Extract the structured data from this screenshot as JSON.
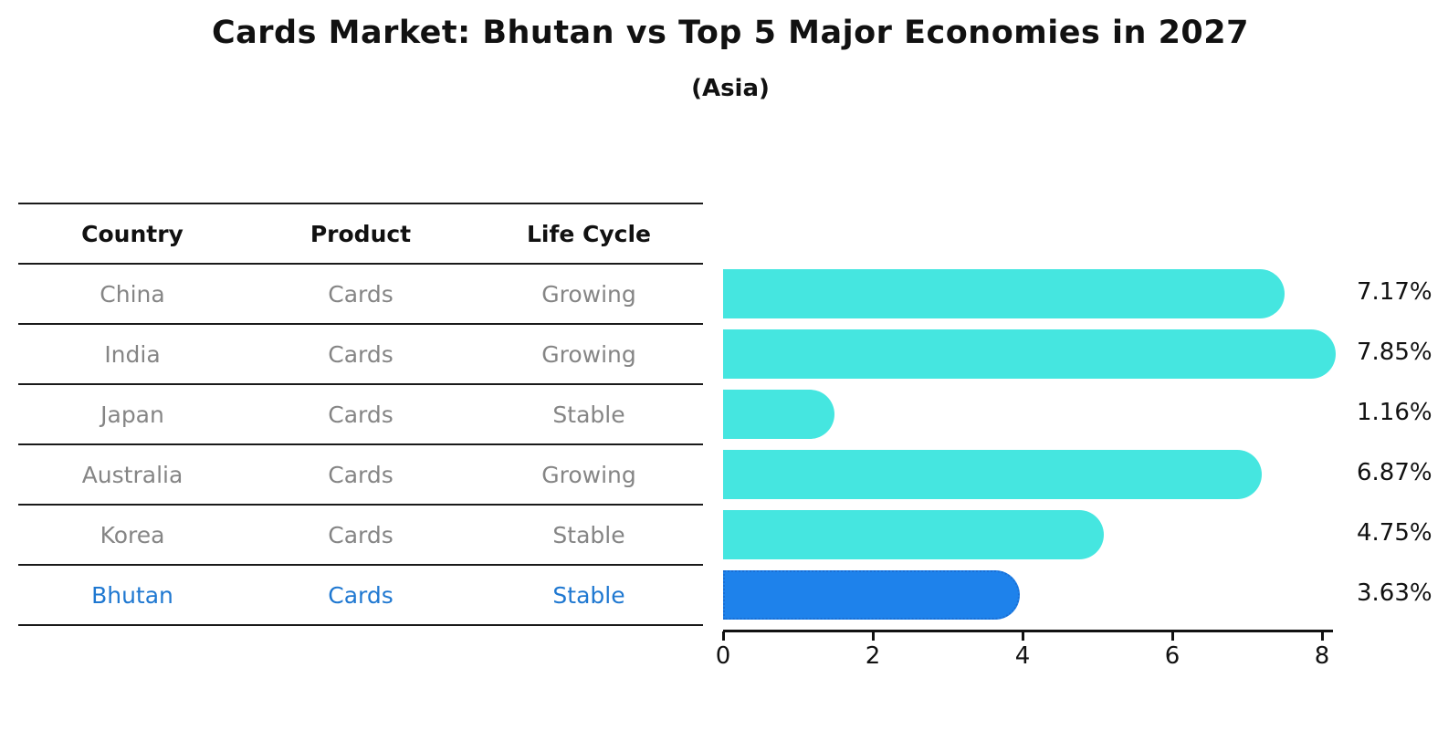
{
  "header": {
    "title": "Cards Market: Bhutan vs Top 5 Major Economies in 2027",
    "subtitle": "(Asia)"
  },
  "table": {
    "headers": [
      "Country",
      "Product",
      "Life Cycle"
    ],
    "rows": [
      {
        "country": "China",
        "product": "Cards",
        "life_cycle": "Growing",
        "highlight": false
      },
      {
        "country": "India",
        "product": "Cards",
        "life_cycle": "Growing",
        "highlight": false
      },
      {
        "country": "Japan",
        "product": "Cards",
        "life_cycle": "Stable",
        "highlight": false
      },
      {
        "country": "Australia",
        "product": "Cards",
        "life_cycle": "Growing",
        "highlight": false
      },
      {
        "country": "Korea",
        "product": "Cards",
        "life_cycle": "Stable",
        "highlight": false
      },
      {
        "country": "Bhutan",
        "product": "Cards",
        "life_cycle": "Stable",
        "highlight": true
      }
    ]
  },
  "chart_data": {
    "type": "bar",
    "orientation": "horizontal",
    "title": "Cards Market: Bhutan vs Top 5 Major Economies in 2027",
    "subtitle": "(Asia)",
    "categories": [
      "China",
      "India",
      "Japan",
      "Australia",
      "Korea",
      "Bhutan"
    ],
    "values": [
      7.17,
      7.85,
      1.16,
      6.87,
      4.75,
      3.63
    ],
    "value_labels": [
      "7.17%",
      "7.85%",
      "1.16%",
      "6.87%",
      "4.75%",
      "3.63%"
    ],
    "highlight_category": "Bhutan",
    "x_ticks": [
      0,
      2,
      4,
      6,
      8
    ],
    "xlim": [
      0,
      8.2
    ],
    "grid": false,
    "legend": false,
    "colors": {
      "bar": "#45e6e0",
      "highlight_bar": "#1e82eb",
      "highlight_bar_border": "#1a6fd4",
      "highlight_text": "#1f78d1",
      "row_text": "#858585",
      "axis": "#111111"
    }
  }
}
